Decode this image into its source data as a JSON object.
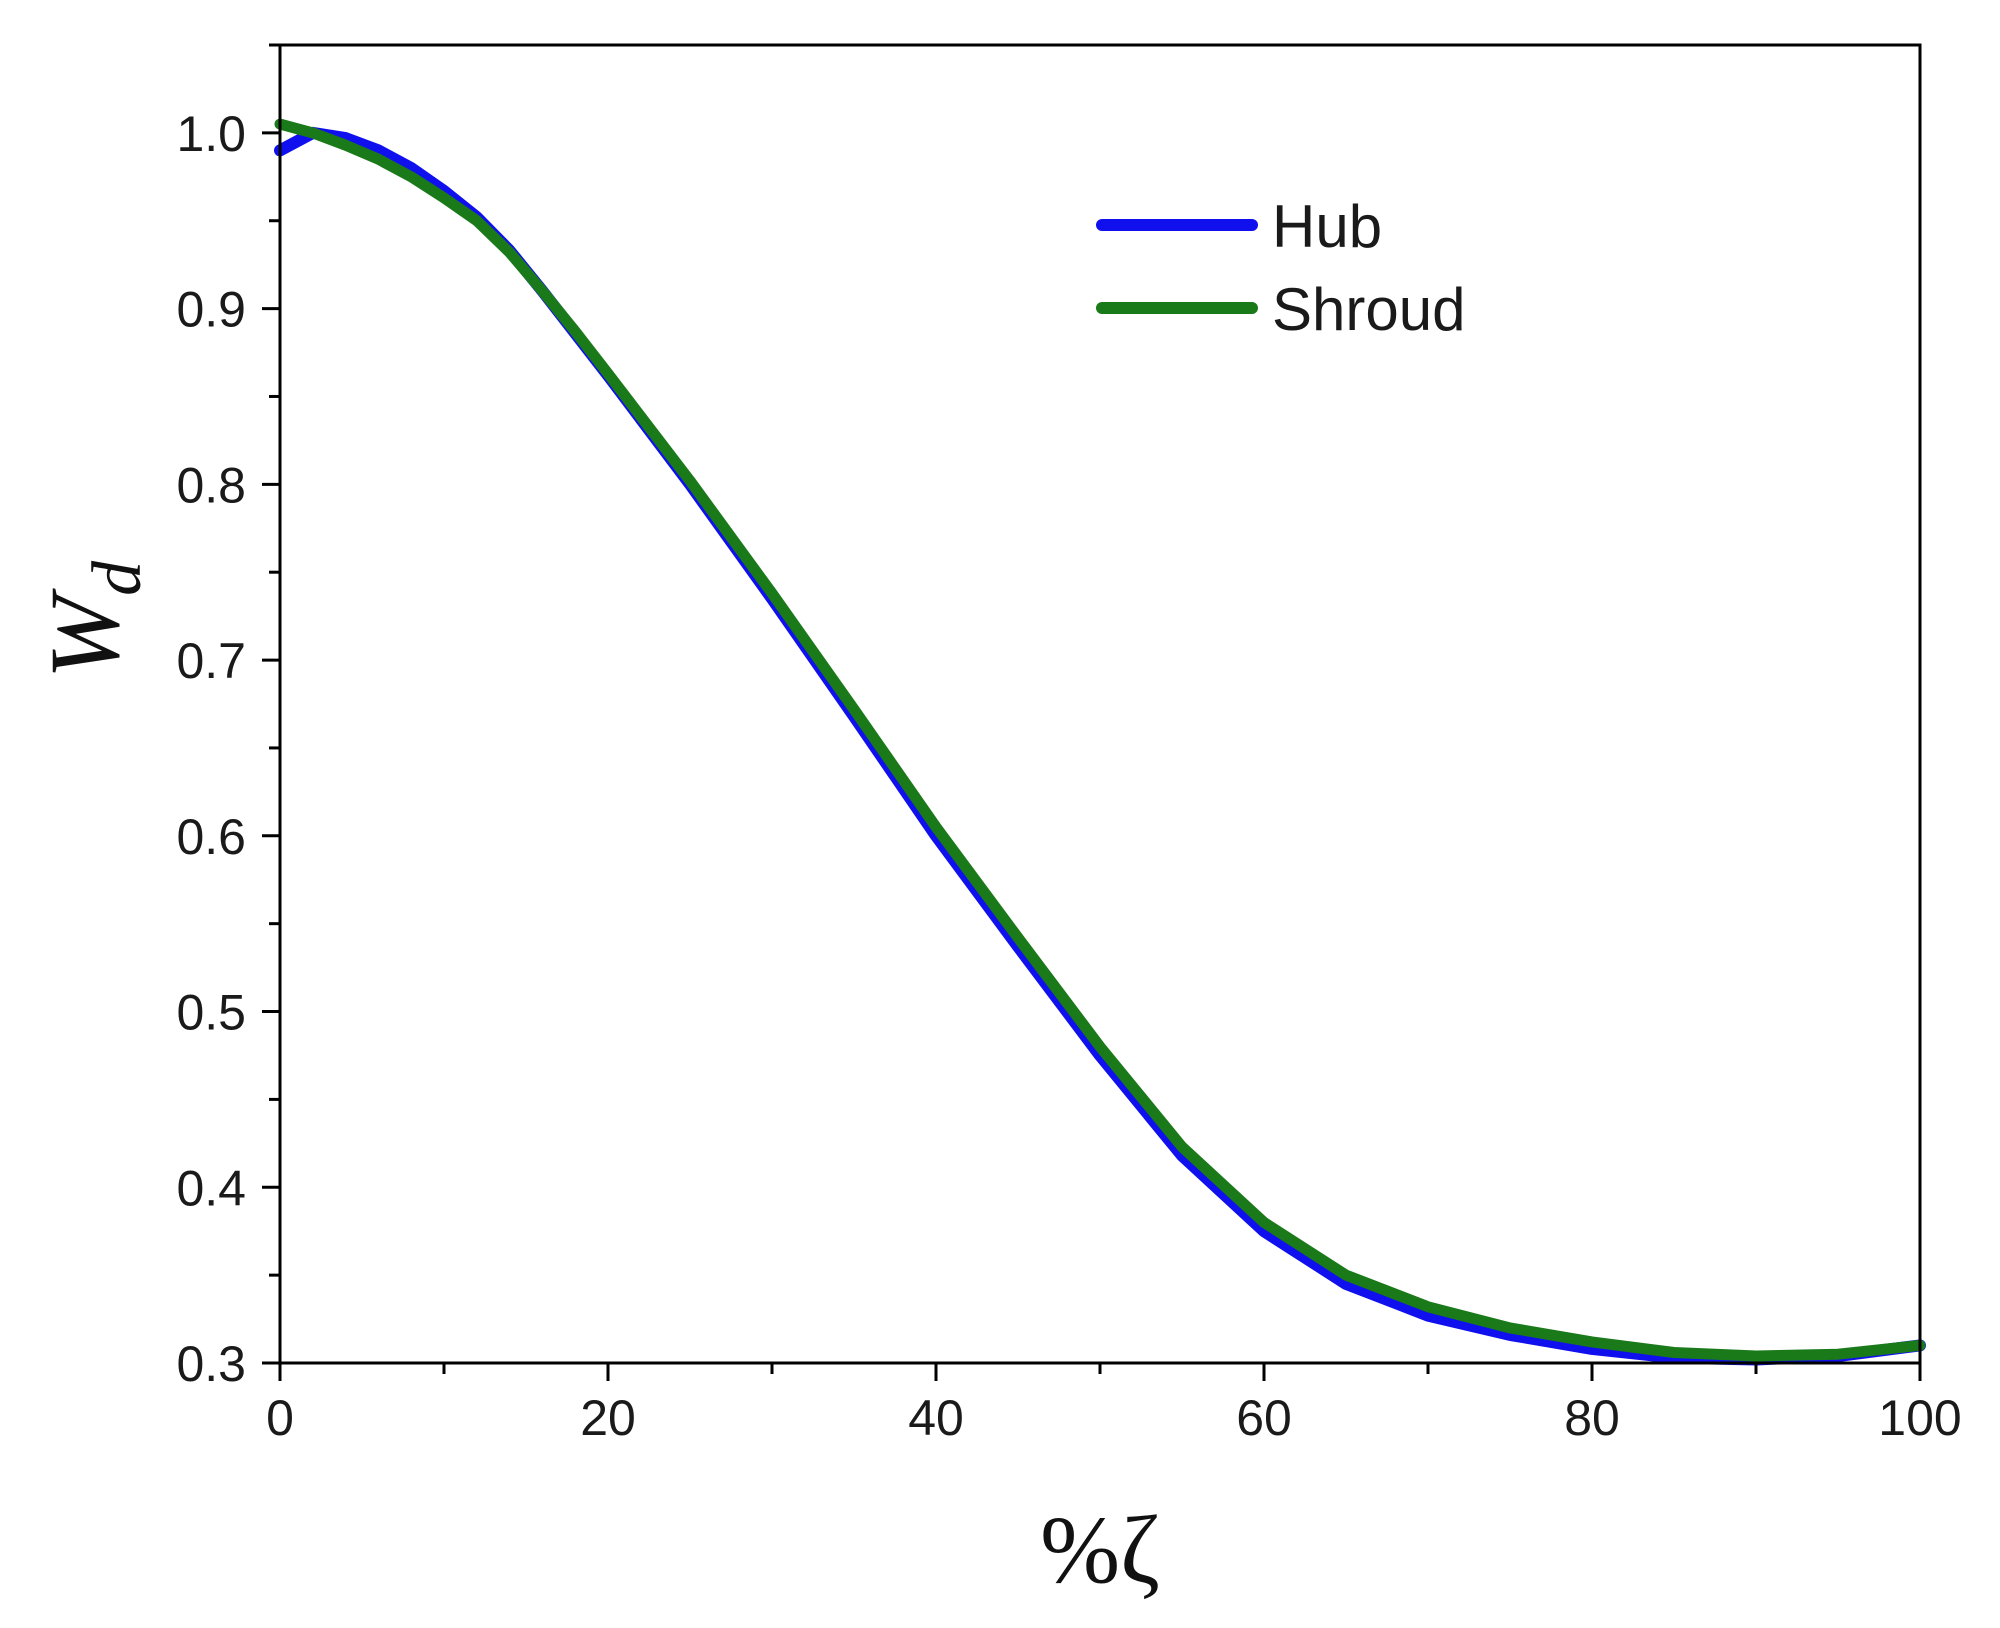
{
  "chart_data": {
    "type": "line",
    "title": "",
    "xlabel": "%ζ",
    "ylabel": "W_d",
    "ylabel_main": "W",
    "ylabel_sub": "d",
    "xlim": [
      0,
      100
    ],
    "ylim": [
      0.3,
      1.05
    ],
    "x_ticks": [
      0,
      20,
      40,
      60,
      80,
      100
    ],
    "y_ticks": [
      0.3,
      0.4,
      0.5,
      0.6,
      0.7,
      0.8,
      0.9,
      1.0
    ],
    "x_tick_labels": [
      "0",
      "20",
      "40",
      "60",
      "80",
      "100"
    ],
    "y_tick_labels": [
      "0.3",
      "0.4",
      "0.5",
      "0.6",
      "0.7",
      "0.8",
      "0.9",
      "1.0"
    ],
    "grid": false,
    "legend_position": "top-right",
    "colors": {
      "Hub": "#1010ee",
      "Shroud": "#1a7a1a"
    },
    "series": [
      {
        "name": "Hub",
        "x": [
          0,
          2,
          4,
          6,
          8,
          10,
          12,
          14,
          16,
          18,
          20,
          25,
          30,
          35,
          40,
          45,
          50,
          55,
          60,
          65,
          70,
          75,
          80,
          85,
          90,
          95,
          100
        ],
        "y": [
          0.99,
          1.0,
          0.997,
          0.99,
          0.98,
          0.967,
          0.952,
          0.933,
          0.91,
          0.886,
          0.862,
          0.8,
          0.735,
          0.668,
          0.6,
          0.537,
          0.475,
          0.418,
          0.375,
          0.345,
          0.327,
          0.316,
          0.308,
          0.303,
          0.302,
          0.304,
          0.31
        ]
      },
      {
        "name": "Shroud",
        "x": [
          0,
          2,
          4,
          6,
          8,
          10,
          12,
          14,
          16,
          18,
          20,
          25,
          30,
          35,
          40,
          45,
          50,
          55,
          60,
          65,
          70,
          75,
          80,
          85,
          90,
          95,
          100
        ],
        "y": [
          1.005,
          1.0,
          0.993,
          0.985,
          0.975,
          0.963,
          0.95,
          0.932,
          0.91,
          0.887,
          0.863,
          0.802,
          0.738,
          0.672,
          0.605,
          0.542,
          0.48,
          0.423,
          0.38,
          0.35,
          0.332,
          0.32,
          0.312,
          0.306,
          0.304,
          0.305,
          0.31
        ]
      }
    ]
  }
}
